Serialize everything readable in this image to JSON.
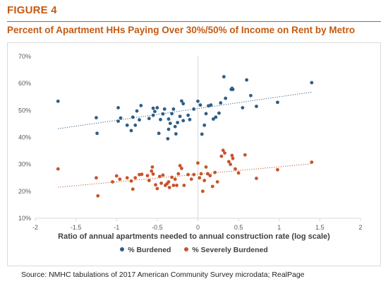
{
  "figure_label": "FIGURE 4",
  "title": "Percent of Apartment HHs Paying Over 30%/50% of Income on Rent by Metro",
  "source": "Source: NMHC tabulations of 2017 American Community Survey microdata; RealPage",
  "colors": {
    "title": "#c55a11",
    "burdened": "#2f5d86",
    "severely_burdened": "#c8532a",
    "axis_text": "#595959",
    "gridline": "#d9d9d9"
  },
  "chart_data": {
    "type": "scatter",
    "title": "",
    "xlabel": "Ratio of annual apartments needed to annual construction rate (log scale)",
    "ylabel": "",
    "xlim": [
      -2,
      2
    ],
    "ylim": [
      0.1,
      0.7
    ],
    "xticks": [
      -2,
      -1.5,
      -1,
      -0.5,
      0,
      0.5,
      1,
      1.5,
      2
    ],
    "xtick_labels": [
      "-2",
      "-1.5",
      "-1",
      "-0.5",
      "0",
      "0.5",
      "1",
      "1.5",
      "2"
    ],
    "yticks": [
      0.1,
      0.2,
      0.3,
      0.4,
      0.5,
      0.6,
      0.7
    ],
    "ytick_labels": [
      "10%",
      "20%",
      "30%",
      "40%",
      "50%",
      "60%",
      "70%"
    ],
    "grid": "none",
    "reference_line_x": 0,
    "legend_position": "bottom",
    "series": [
      {
        "name": "% Burdened",
        "color": "#2f5d86",
        "trendline": {
          "style": "dotted",
          "x": [
            -1.72,
            1.4
          ],
          "y": [
            0.432,
            0.568
          ]
        },
        "points": [
          [
            -1.72,
            0.534
          ],
          [
            -1.25,
            0.473
          ],
          [
            -1.24,
            0.415
          ],
          [
            -0.98,
            0.51
          ],
          [
            -0.98,
            0.46
          ],
          [
            -0.95,
            0.472
          ],
          [
            -0.87,
            0.445
          ],
          [
            -0.82,
            0.425
          ],
          [
            -0.8,
            0.475
          ],
          [
            -0.77,
            0.445
          ],
          [
            -0.75,
            0.498
          ],
          [
            -0.72,
            0.465
          ],
          [
            -0.7,
            0.518
          ],
          [
            -0.6,
            0.47
          ],
          [
            -0.55,
            0.482
          ],
          [
            -0.55,
            0.508
          ],
          [
            -0.53,
            0.496
          ],
          [
            -0.5,
            0.51
          ],
          [
            -0.48,
            0.415
          ],
          [
            -0.46,
            0.466
          ],
          [
            -0.43,
            0.487
          ],
          [
            -0.41,
            0.505
          ],
          [
            -0.37,
            0.395
          ],
          [
            -0.36,
            0.43
          ],
          [
            -0.36,
            0.468
          ],
          [
            -0.34,
            0.452
          ],
          [
            -0.32,
            0.488
          ],
          [
            -0.3,
            0.505
          ],
          [
            -0.28,
            0.44
          ],
          [
            -0.27,
            0.413
          ],
          [
            -0.25,
            0.455
          ],
          [
            -0.22,
            0.478
          ],
          [
            -0.2,
            0.535
          ],
          [
            -0.18,
            0.525
          ],
          [
            -0.18,
            0.462
          ],
          [
            -0.12,
            0.482
          ],
          [
            -0.1,
            0.466
          ],
          [
            -0.05,
            0.505
          ],
          [
            0.0,
            0.534
          ],
          [
            0.03,
            0.52
          ],
          [
            0.05,
            0.412
          ],
          [
            0.08,
            0.445
          ],
          [
            0.1,
            0.488
          ],
          [
            0.13,
            0.517
          ],
          [
            0.16,
            0.52
          ],
          [
            0.19,
            0.468
          ],
          [
            0.22,
            0.475
          ],
          [
            0.26,
            0.49
          ],
          [
            0.28,
            0.528
          ],
          [
            0.32,
            0.625
          ],
          [
            0.34,
            0.545
          ],
          [
            0.41,
            0.578
          ],
          [
            0.42,
            0.582
          ],
          [
            0.43,
            0.578
          ],
          [
            0.55,
            0.51
          ],
          [
            0.6,
            0.613
          ],
          [
            0.65,
            0.555
          ],
          [
            0.72,
            0.515
          ],
          [
            0.98,
            0.53
          ],
          [
            1.4,
            0.603
          ]
        ]
      },
      {
        "name": "% Severely Burdened",
        "color": "#c8532a",
        "trendline": {
          "style": "dotted",
          "x": [
            -1.72,
            1.4
          ],
          "y": [
            0.215,
            0.302
          ]
        },
        "points": [
          [
            -1.72,
            0.283
          ],
          [
            -1.25,
            0.25
          ],
          [
            -1.23,
            0.183
          ],
          [
            -1.05,
            0.235
          ],
          [
            -1.0,
            0.257
          ],
          [
            -0.96,
            0.245
          ],
          [
            -0.87,
            0.25
          ],
          [
            -0.82,
            0.238
          ],
          [
            -0.8,
            0.208
          ],
          [
            -0.77,
            0.25
          ],
          [
            -0.72,
            0.262
          ],
          [
            -0.69,
            0.263
          ],
          [
            -0.62,
            0.258
          ],
          [
            -0.6,
            0.24
          ],
          [
            -0.57,
            0.275
          ],
          [
            -0.56,
            0.29
          ],
          [
            -0.55,
            0.264
          ],
          [
            -0.52,
            0.224
          ],
          [
            -0.5,
            0.21
          ],
          [
            -0.47,
            0.255
          ],
          [
            -0.45,
            0.23
          ],
          [
            -0.43,
            0.26
          ],
          [
            -0.4,
            0.222
          ],
          [
            -0.38,
            0.228
          ],
          [
            -0.36,
            0.235
          ],
          [
            -0.35,
            0.214
          ],
          [
            -0.32,
            0.252
          ],
          [
            -0.3,
            0.222
          ],
          [
            -0.28,
            0.245
          ],
          [
            -0.26,
            0.222
          ],
          [
            -0.24,
            0.265
          ],
          [
            -0.22,
            0.295
          ],
          [
            -0.2,
            0.285
          ],
          [
            -0.17,
            0.222
          ],
          [
            -0.12,
            0.262
          ],
          [
            -0.08,
            0.245
          ],
          [
            -0.05,
            0.262
          ],
          [
            0.0,
            0.305
          ],
          [
            0.02,
            0.25
          ],
          [
            0.04,
            0.265
          ],
          [
            0.06,
            0.2
          ],
          [
            0.08,
            0.24
          ],
          [
            0.1,
            0.29
          ],
          [
            0.12,
            0.265
          ],
          [
            0.15,
            0.258
          ],
          [
            0.18,
            0.218
          ],
          [
            0.21,
            0.27
          ],
          [
            0.24,
            0.235
          ],
          [
            0.29,
            0.33
          ],
          [
            0.31,
            0.352
          ],
          [
            0.33,
            0.342
          ],
          [
            0.38,
            0.31
          ],
          [
            0.4,
            0.3
          ],
          [
            0.42,
            0.333
          ],
          [
            0.43,
            0.322
          ],
          [
            0.46,
            0.283
          ],
          [
            0.5,
            0.268
          ],
          [
            0.58,
            0.335
          ],
          [
            0.72,
            0.248
          ],
          [
            0.98,
            0.28
          ],
          [
            1.4,
            0.308
          ]
        ]
      }
    ]
  }
}
